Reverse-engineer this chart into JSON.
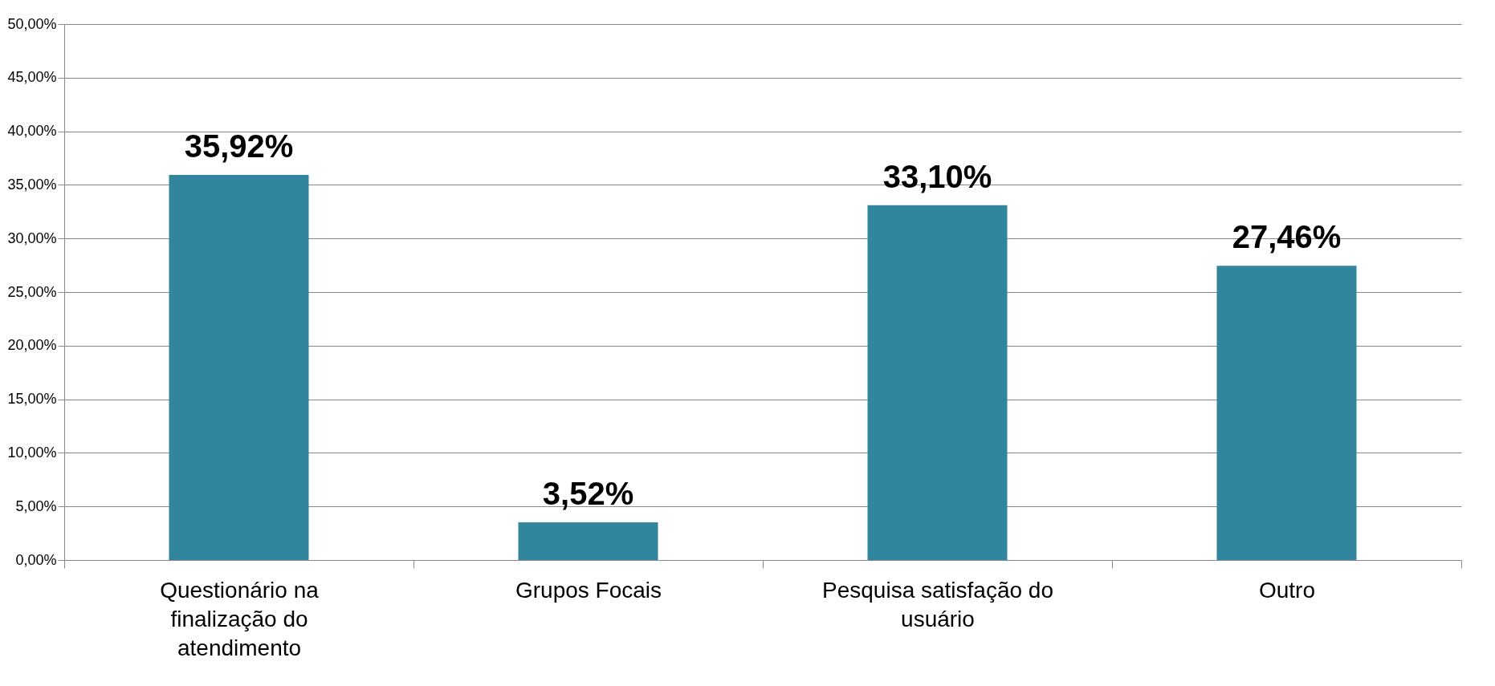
{
  "chart_data": {
    "type": "bar",
    "categories": [
      "Questionário na finalização do atendimento",
      "Grupos Focais",
      "Pesquisa satisfação do usuário",
      "Outro"
    ],
    "values": [
      35.92,
      3.52,
      33.1,
      27.46
    ],
    "value_labels": [
      "35,92%",
      "3,52%",
      "33,10%",
      "27,46%"
    ],
    "color": "#31859c",
    "ylim": [
      0,
      50
    ],
    "yticks": [
      {
        "value": 0,
        "label": "0,00%"
      },
      {
        "value": 5,
        "label": "5,00%"
      },
      {
        "value": 10,
        "label": "10,00%"
      },
      {
        "value": 15,
        "label": "15,00%"
      },
      {
        "value": 20,
        "label": "20,00%"
      },
      {
        "value": 25,
        "label": "25,00%"
      },
      {
        "value": 30,
        "label": "30,00%"
      },
      {
        "value": 35,
        "label": "35,00%"
      },
      {
        "value": 40,
        "label": "40,00%"
      },
      {
        "value": 45,
        "label": "45,00%"
      },
      {
        "value": 50,
        "label": "50,00%"
      }
    ],
    "grid": "y"
  }
}
